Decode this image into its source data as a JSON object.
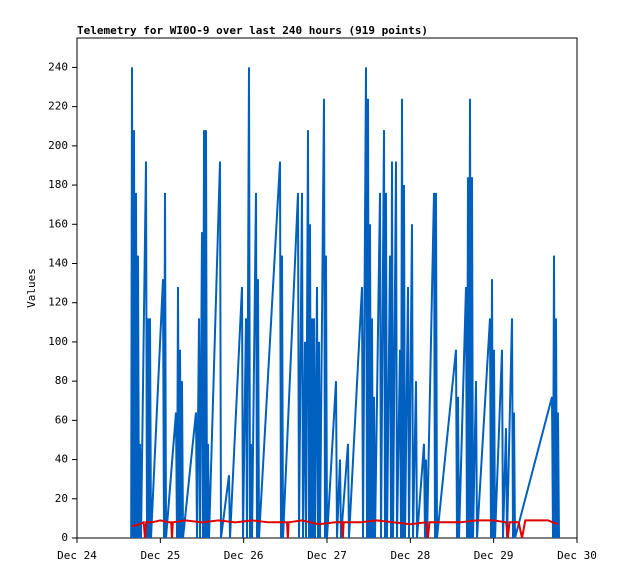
{
  "chart_data": {
    "type": "line",
    "title": "Telemetry for WI0O-9 over last 240 hours (919 points)",
    "ylabel": "Values",
    "xlim": [
      0,
      6
    ],
    "xticks": [
      {
        "value": 0,
        "label": "Dec 24"
      },
      {
        "value": 1,
        "label": "Dec 25"
      },
      {
        "value": 2,
        "label": "Dec 26"
      },
      {
        "value": 3,
        "label": "Dec 27"
      },
      {
        "value": 4,
        "label": "Dec 28"
      },
      {
        "value": 5,
        "label": "Dec 29"
      },
      {
        "value": 6,
        "label": "Dec 30"
      }
    ],
    "ylim": [
      0,
      255
    ],
    "yticks": [
      0,
      20,
      40,
      60,
      80,
      100,
      120,
      140,
      160,
      180,
      200,
      220,
      240
    ],
    "series": [
      {
        "color": "#0060c0",
        "x": [
          0.65,
          0.66,
          0.672,
          0.684,
          0.696,
          0.708,
          0.72,
          0.732,
          0.744,
          0.756,
          0.768,
          0.828,
          0.84,
          0.852,
          0.864,
          0.876,
          0.888,
          1.032,
          1.044,
          1.056,
          1.068,
          1.188,
          1.2,
          1.212,
          1.224,
          1.236,
          1.248,
          1.26,
          1.272,
          1.428,
          1.44,
          1.464,
          1.476,
          1.5,
          1.512,
          1.524,
          1.536,
          1.548,
          1.56,
          1.572,
          1.584,
          1.716,
          1.728,
          1.824,
          1.836,
          1.98,
          1.992,
          2.028,
          2.04,
          2.064,
          2.076,
          2.088,
          2.1,
          2.148,
          2.16,
          2.172,
          2.184,
          2.436,
          2.448,
          2.46,
          2.472,
          2.652,
          2.664,
          2.7,
          2.712,
          2.736,
          2.748,
          2.772,
          2.784,
          2.796,
          2.808,
          2.82,
          2.832,
          2.844,
          2.856,
          2.88,
          2.892,
          2.904,
          2.916,
          2.964,
          2.976,
          2.988,
          3.0,
          3.108,
          3.12,
          3.156,
          3.168,
          3.252,
          3.264,
          3.42,
          3.432,
          3.468,
          3.48,
          3.492,
          3.504,
          3.516,
          3.528,
          3.54,
          3.552,
          3.564,
          3.576,
          3.636,
          3.648,
          3.684,
          3.696,
          3.708,
          3.72,
          3.756,
          3.768,
          3.78,
          3.792,
          3.828,
          3.84,
          3.876,
          3.888,
          3.9,
          3.912,
          3.924,
          3.936,
          3.972,
          3.984,
          4.02,
          4.032,
          4.068,
          4.08,
          4.164,
          4.176,
          4.188,
          4.2,
          4.284,
          4.296,
          4.308,
          4.32,
          4.548,
          4.56,
          4.572,
          4.584,
          4.668,
          4.68,
          4.692,
          4.704,
          4.716,
          4.728,
          4.74,
          4.752,
          4.788,
          4.8,
          4.956,
          4.968,
          4.98,
          4.992,
          5.004,
          5.016,
          5.1,
          5.112,
          5.148,
          5.16,
          5.22,
          5.232,
          5.244,
          5.256,
          5.7,
          5.712,
          5.724,
          5.736,
          5.748,
          5.76,
          5.772,
          5.784
        ],
        "values": [
          0,
          240,
          0,
          208,
          0,
          176,
          0,
          144,
          0,
          48,
          0,
          192,
          0,
          112,
          0,
          112,
          0,
          132,
          0,
          176,
          0,
          64,
          0,
          128,
          0,
          96,
          0,
          80,
          0,
          64,
          0,
          112,
          0,
          156,
          0,
          208,
          0,
          208,
          0,
          48,
          0,
          192,
          0,
          32,
          0,
          128,
          0,
          112,
          0,
          240,
          0,
          48,
          0,
          176,
          0,
          132,
          0,
          192,
          0,
          144,
          0,
          176,
          0,
          176,
          0,
          100,
          0,
          208,
          0,
          160,
          0,
          112,
          0,
          112,
          0,
          128,
          0,
          100,
          0,
          224,
          0,
          144,
          0,
          80,
          0,
          40,
          0,
          48,
          0,
          128,
          0,
          240,
          0,
          224,
          0,
          160,
          0,
          112,
          0,
          72,
          0,
          176,
          0,
          208,
          0,
          176,
          0,
          144,
          0,
          192,
          0,
          192,
          0,
          96,
          0,
          224,
          0,
          180,
          0,
          128,
          0,
          160,
          0,
          80,
          0,
          48,
          0,
          40,
          0,
          176,
          0,
          176,
          0,
          96,
          0,
          72,
          0,
          128,
          0,
          184,
          0,
          224,
          0,
          184,
          0,
          80,
          0,
          112,
          0,
          132,
          0,
          96,
          0,
          96,
          0,
          56,
          0,
          112,
          0,
          64,
          0,
          72,
          0,
          144,
          0,
          112,
          0,
          64,
          0
        ]
      },
      {
        "color": "#e00000",
        "x": [
          0.66,
          0.75,
          0.8,
          0.816,
          0.83,
          0.9,
          1.0,
          1.1,
          1.13,
          1.14,
          1.15,
          1.3,
          1.5,
          1.7,
          1.9,
          2.1,
          2.3,
          2.5,
          2.52,
          2.53,
          2.54,
          2.7,
          2.9,
          3.1,
          3.18,
          3.19,
          3.2,
          3.4,
          3.6,
          3.8,
          4.0,
          4.19,
          4.21,
          4.23,
          4.4,
          4.6,
          4.8,
          5.0,
          5.15,
          5.17,
          5.19,
          5.3,
          5.34,
          5.38,
          5.5,
          5.65,
          5.77
        ],
        "values": [
          6,
          7,
          8,
          0,
          8,
          8,
          9,
          8,
          8,
          0,
          8,
          9,
          8,
          9,
          8,
          9,
          8,
          8,
          8,
          0,
          8,
          9,
          7,
          8,
          8,
          0,
          8,
          8,
          9,
          8,
          7,
          8,
          0,
          8,
          8,
          8,
          9,
          9,
          8,
          0,
          8,
          8,
          0,
          9,
          9,
          9,
          7
        ]
      }
    ]
  }
}
